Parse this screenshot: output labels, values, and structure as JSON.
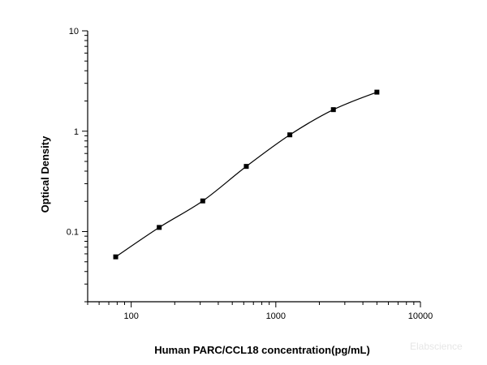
{
  "chart_data": {
    "type": "scatter",
    "title": "",
    "xlabel": "Human PARC/CCL18 concentration(pg/mL)",
    "ylabel": "Optical Density",
    "xscale": "log",
    "yscale": "log",
    "xlim": [
      50,
      10000
    ],
    "ylim": [
      0.02,
      10
    ],
    "x_ticks": [
      100,
      1000,
      10000
    ],
    "x_tick_labels": [
      "100",
      "1000",
      "10000"
    ],
    "y_ticks": [
      0.1,
      1,
      10
    ],
    "y_tick_labels": [
      "0.1",
      "1",
      "10"
    ],
    "grid": false,
    "legend": "none",
    "fit_curve": true,
    "series": [
      {
        "x": [
          78.13,
          156.25,
          312.5,
          625,
          1250,
          2500,
          5000
        ],
        "y": [
          0.056,
          0.11,
          0.202,
          0.446,
          0.92,
          1.64,
          2.45
        ]
      }
    ]
  },
  "watermark": "Elabscience"
}
